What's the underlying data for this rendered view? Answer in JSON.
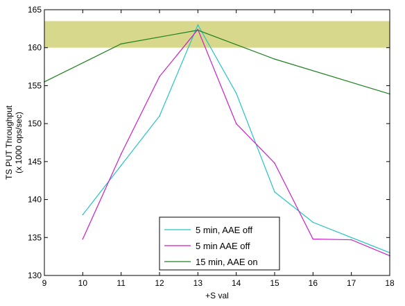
{
  "chart_data": {
    "type": "line",
    "title": "",
    "xlabel": "+S val",
    "ylabel_lines": [
      "TS PUT Throughput",
      "(x 1000 ops/sec)"
    ],
    "xlim": [
      9,
      18
    ],
    "ylim": [
      130,
      165
    ],
    "xticks": [
      9,
      10,
      11,
      12,
      13,
      14,
      15,
      16,
      17,
      18
    ],
    "yticks": [
      130,
      135,
      140,
      145,
      150,
      155,
      160,
      165
    ],
    "grid": false,
    "legend_position": "bottom-center",
    "band": {
      "y_from": 160,
      "y_to": 163.5,
      "color": "#d8d88c"
    },
    "series": [
      {
        "name": "5 min, AAE off",
        "color": "#23c3c3",
        "x": [
          10,
          11,
          12,
          13,
          14,
          15,
          16,
          17,
          18
        ],
        "y": [
          138,
          144.5,
          151,
          163,
          154,
          141,
          137,
          135,
          133
        ]
      },
      {
        "name": "5 min AAE off",
        "color": "#c91fc9",
        "x": [
          10,
          11,
          12,
          13,
          14,
          15,
          16,
          17,
          18
        ],
        "y": [
          134.8,
          146,
          156.2,
          162.4,
          150,
          144.8,
          134.8,
          134.7,
          132.6
        ]
      },
      {
        "name": "15 min, AAE on",
        "color": "#1e7f1e",
        "x": [
          9,
          11,
          13,
          15,
          18
        ],
        "y": [
          155.5,
          160.5,
          162.3,
          158.5,
          153.9
        ]
      }
    ]
  }
}
